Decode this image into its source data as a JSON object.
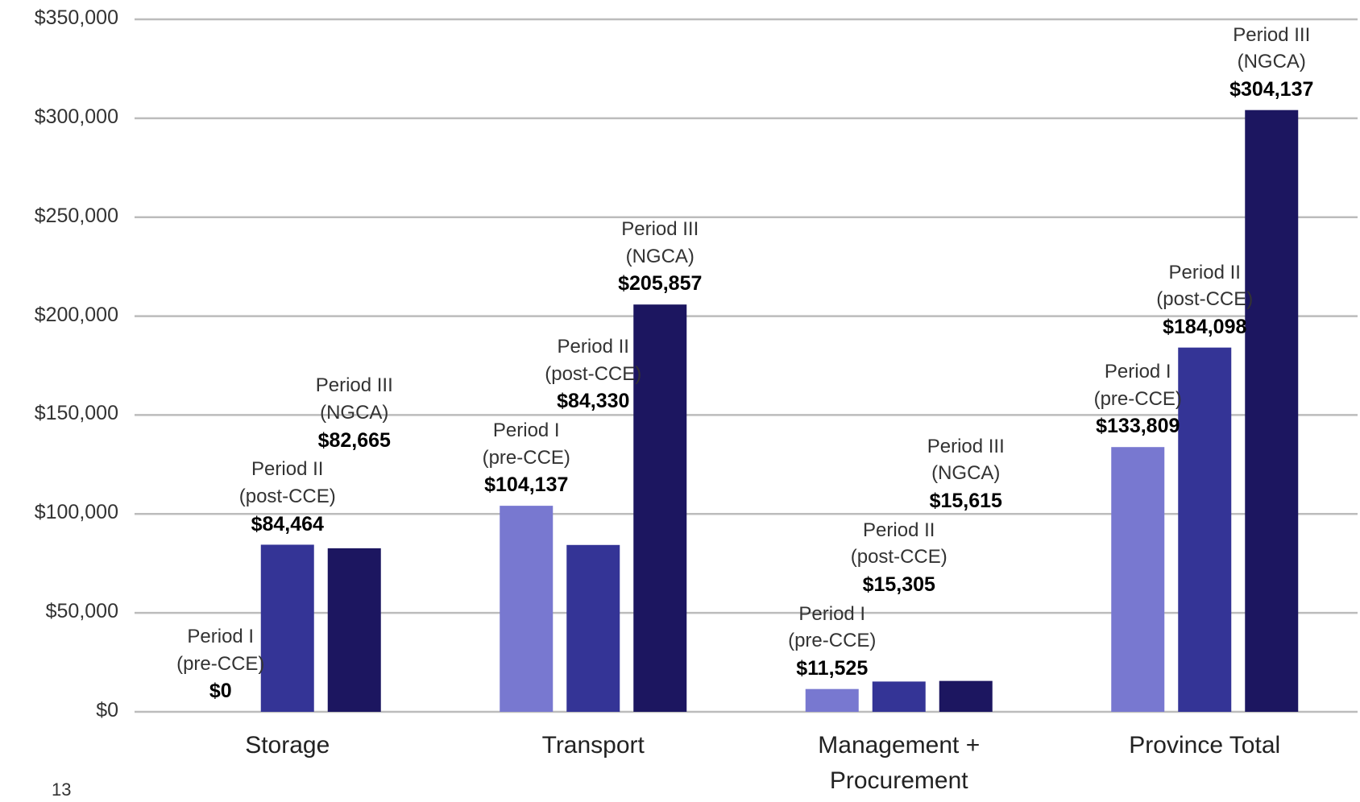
{
  "chart_data": {
    "type": "bar",
    "categories": [
      "Storage",
      "Transport",
      "Management + Procurement",
      "Province Total"
    ],
    "series": [
      {
        "name": "Period I (pre-CCE)",
        "color": "#7878d0",
        "values": [
          0,
          104137,
          11525,
          133809
        ],
        "value_labels": [
          "$0",
          "$104,137",
          "$11,525",
          "$133,809"
        ]
      },
      {
        "name": "Period II (post-CCE)",
        "color": "#343496",
        "values": [
          84464,
          84330,
          15305,
          184098
        ],
        "value_labels": [
          "$84,464",
          "$84,330",
          "$15,305",
          "$184,098"
        ]
      },
      {
        "name": "Period III (NGCA)",
        "color": "#1c1660",
        "values": [
          82665,
          205857,
          15615,
          304137
        ],
        "value_labels": [
          "$82,665",
          "$205,857",
          "$15,615",
          "$304,137"
        ]
      }
    ],
    "ylim": [
      0,
      350000
    ],
    "yticks": [
      {
        "value": 0,
        "label": "$0"
      },
      {
        "value": 50000,
        "label": "$50,000"
      },
      {
        "value": 100000,
        "label": "$100,000"
      },
      {
        "value": 150000,
        "label": "$150,000"
      },
      {
        "value": 200000,
        "label": "$200,000"
      },
      {
        "value": 250000,
        "label": "$250,000"
      },
      {
        "value": 300000,
        "label": "$300,000"
      },
      {
        "value": 350000,
        "label": "$350,000"
      }
    ],
    "grid": true
  },
  "page_number": "13"
}
